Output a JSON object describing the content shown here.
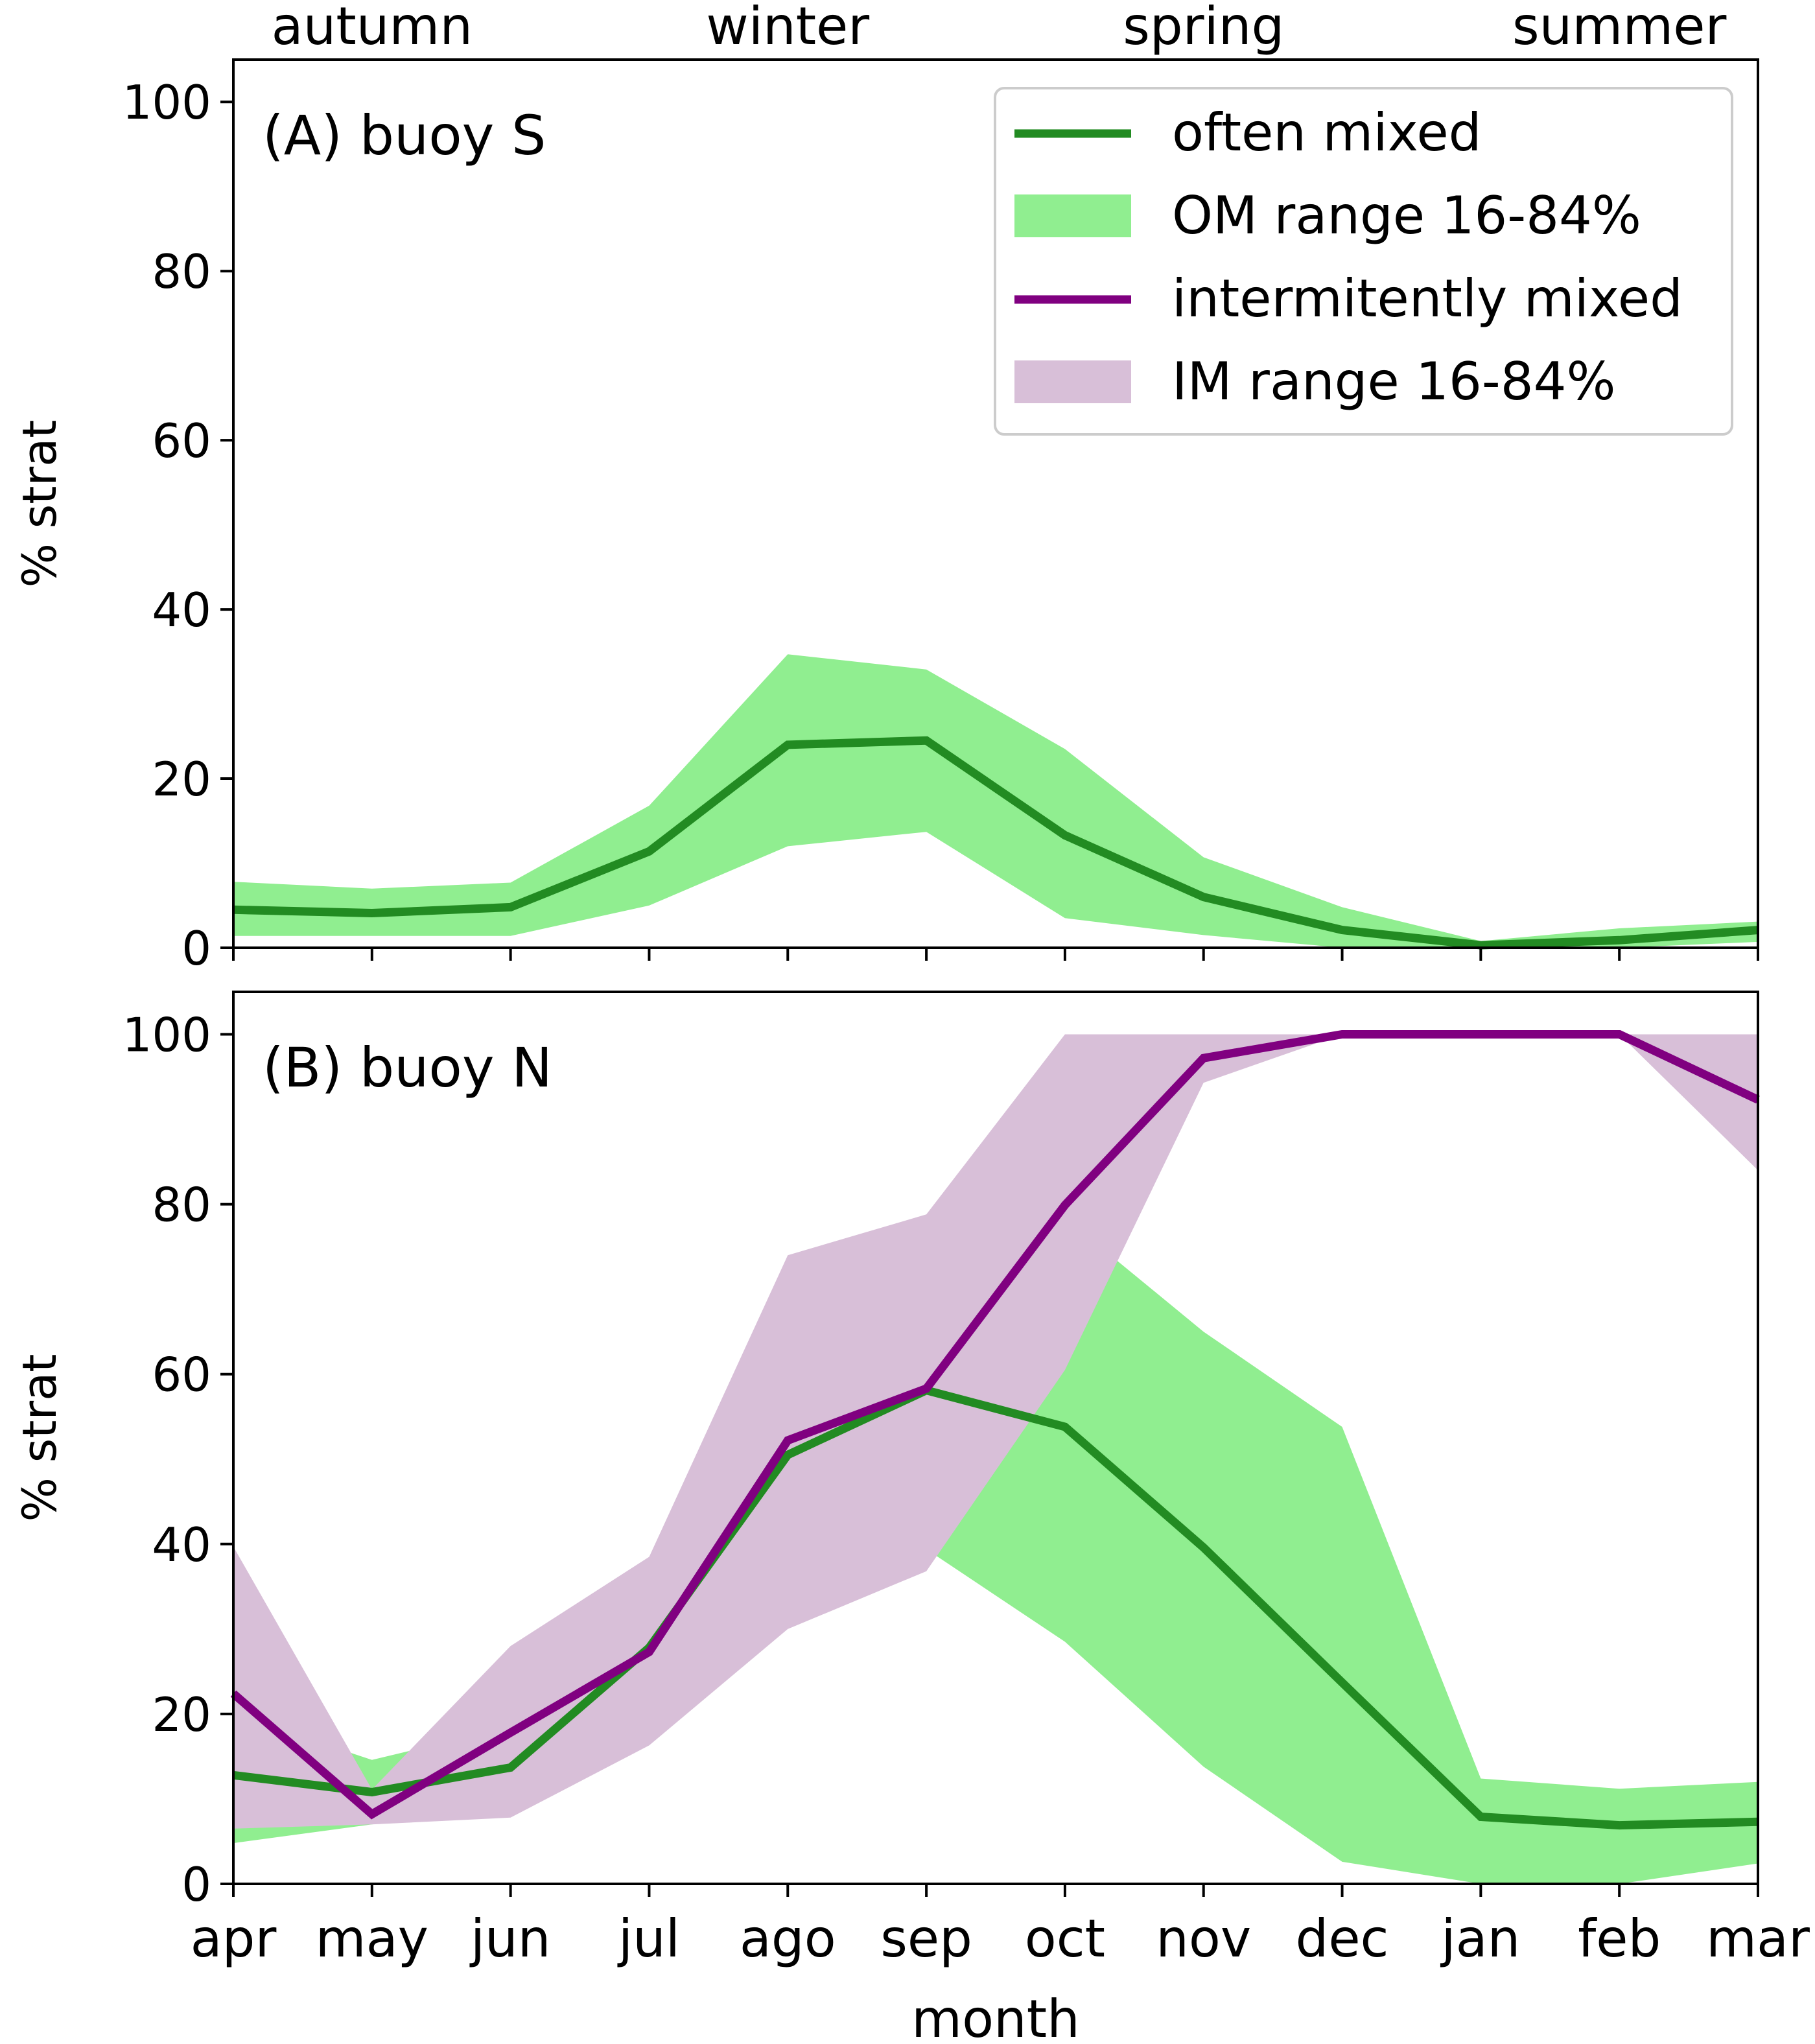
{
  "chart_data": [
    {
      "type": "line",
      "panel_label": "(A) buoy S",
      "ylabel": "% strat",
      "xlabel": "",
      "ylim": [
        0,
        105
      ],
      "yticks": [
        "0",
        "20",
        "40",
        "60",
        "80",
        "100"
      ],
      "seasons": [
        "autumn",
        "winter",
        "spring",
        "summer"
      ],
      "series": [
        {
          "name": "often mixed",
          "color": "#228b22",
          "values": [
            4.5,
            4.1,
            4.8,
            11.4,
            24.0,
            24.5,
            13.3,
            6.0,
            2.1,
            0.3,
            0.9,
            2.1
          ],
          "range_name": "OM range 16-84%",
          "range_color": "#90ee90",
          "range_low": [
            1.4,
            1.4,
            1.4,
            5.0,
            12.0,
            13.7,
            3.5,
            1.5,
            0.0,
            0.0,
            0.0,
            0.7
          ],
          "range_high": [
            7.8,
            7.0,
            7.7,
            16.8,
            34.7,
            32.9,
            23.5,
            10.7,
            4.8,
            0.8,
            2.3,
            3.1
          ]
        }
      ],
      "legend": [
        {
          "label": "often mixed",
          "kind": "line",
          "color": "#228b22"
        },
        {
          "label": "OM range 16-84%",
          "kind": "patch",
          "color": "#90ee90"
        },
        {
          "label": "intermitently mixed",
          "kind": "line",
          "color": "#800080"
        },
        {
          "label": "IM range 16-84%",
          "kind": "patch",
          "color": "#d8bfd8"
        }
      ],
      "legend_position": "top-right"
    },
    {
      "type": "line",
      "panel_label": "(B) buoy N",
      "ylabel": "% strat",
      "xlabel": "month",
      "ylim": [
        0,
        105
      ],
      "yticks": [
        "0",
        "20",
        "40",
        "60",
        "80",
        "100"
      ],
      "categories": [
        "apr",
        "may",
        "jun",
        "jul",
        "ago",
        "sep",
        "oct",
        "nov",
        "dec",
        "jan",
        "feb",
        "mar"
      ],
      "series": [
        {
          "name": "often mixed",
          "color": "#228b22",
          "values": [
            12.8,
            10.8,
            13.7,
            27.8,
            50.5,
            58.1,
            53.8,
            39.6,
            23.7,
            7.9,
            6.9,
            7.3
          ],
          "range_name": "OM range 16-84%",
          "range_color": "#90ee90",
          "range_low": [
            4.8,
            7.0,
            9.1,
            17.0,
            36.3,
            39.4,
            28.5,
            13.8,
            2.6,
            0.0,
            0.0,
            2.4
          ],
          "range_high": [
            20.0,
            14.6,
            18.5,
            37.8,
            65.2,
            77.3,
            78.4,
            65.0,
            53.8,
            12.4,
            11.2,
            12.0
          ]
        },
        {
          "name": "intermitently mixed",
          "color": "#800080",
          "values": [
            22.4,
            8.2,
            17.8,
            27.3,
            52.2,
            58.3,
            79.9,
            97.2,
            100.0,
            100.0,
            100.0,
            92.3
          ],
          "range_name": "IM range 16-84%",
          "range_color": "#d8bfd8",
          "range_low": [
            6.5,
            7.0,
            7.8,
            16.3,
            30.0,
            36.8,
            60.5,
            94.3,
            100.0,
            100.0,
            100.0,
            84.0
          ],
          "range_high": [
            39.7,
            11.1,
            28.0,
            38.5,
            74.0,
            78.8,
            100.0,
            100.0,
            100.0,
            100.0,
            100.0,
            100.0
          ]
        }
      ]
    }
  ]
}
